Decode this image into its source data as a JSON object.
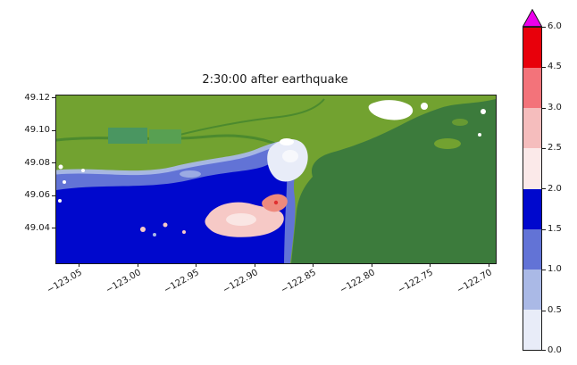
{
  "chart_data": {
    "type": "heatmap",
    "title": "2:30:00 after earthquake",
    "xlabel": "",
    "ylabel": "",
    "x_tick_labels": [
      "−123.05",
      "−123.00",
      "−122.95",
      "−122.90",
      "−122.85",
      "−122.80",
      "−122.75",
      "−122.70"
    ],
    "y_tick_labels": [
      "49.12",
      "49.10",
      "49.08",
      "49.06",
      "49.04"
    ],
    "xlim": [
      -123.07,
      -122.695
    ],
    "ylim": [
      49.02,
      49.122
    ],
    "grid": false,
    "legend_position": "right-colorbar",
    "colorbar": {
      "tick_labels": [
        "0.0",
        "0.5",
        "1.0",
        "1.5",
        "2.0",
        "2.5",
        "3.0",
        "4.5",
        "6.0"
      ],
      "boundaries": [
        0.0,
        0.5,
        1.0,
        1.5,
        2.0,
        2.5,
        3.0,
        4.5,
        6.0
      ],
      "segment_colors": [
        "#e8ecf8",
        "#aab9e6",
        "#6273d6",
        "#0008cd",
        "#fbe9e9",
        "#f5bdbd",
        "#f3737a",
        "#e8000b"
      ],
      "over_color": "#ec00ec",
      "extend": "max"
    },
    "map_colors": {
      "land_light_green": "#72a230",
      "land_dark_green": "#3c7b3c",
      "no_data_white": "#ffffff"
    },
    "regions": [
      {
        "area": "lower-left coastal bay",
        "value_range": "1.5–2.0",
        "color": "#0008cd"
      },
      {
        "area": "flood edge band along shoreline",
        "value_range": "0.5–1.5",
        "color": "#6273d6"
      },
      {
        "area": "river-mouth shallow zone (center)",
        "value_range": "0.0–0.5",
        "color": "#e8ecf8"
      },
      {
        "area": "inundated patches near shore (center)",
        "value_range": "2.0–3.0",
        "color": "#f5bdbd"
      },
      {
        "area": "small deep spot near river mouth",
        "value_range": "3.0–4.5",
        "color": "#f3737a"
      },
      {
        "area": "upland plain (upper left)",
        "value_range": "dry land",
        "color": "#72a230"
      },
      {
        "area": "forested upland (right)",
        "value_range": "dry land",
        "color": "#3c7b3c"
      }
    ]
  }
}
